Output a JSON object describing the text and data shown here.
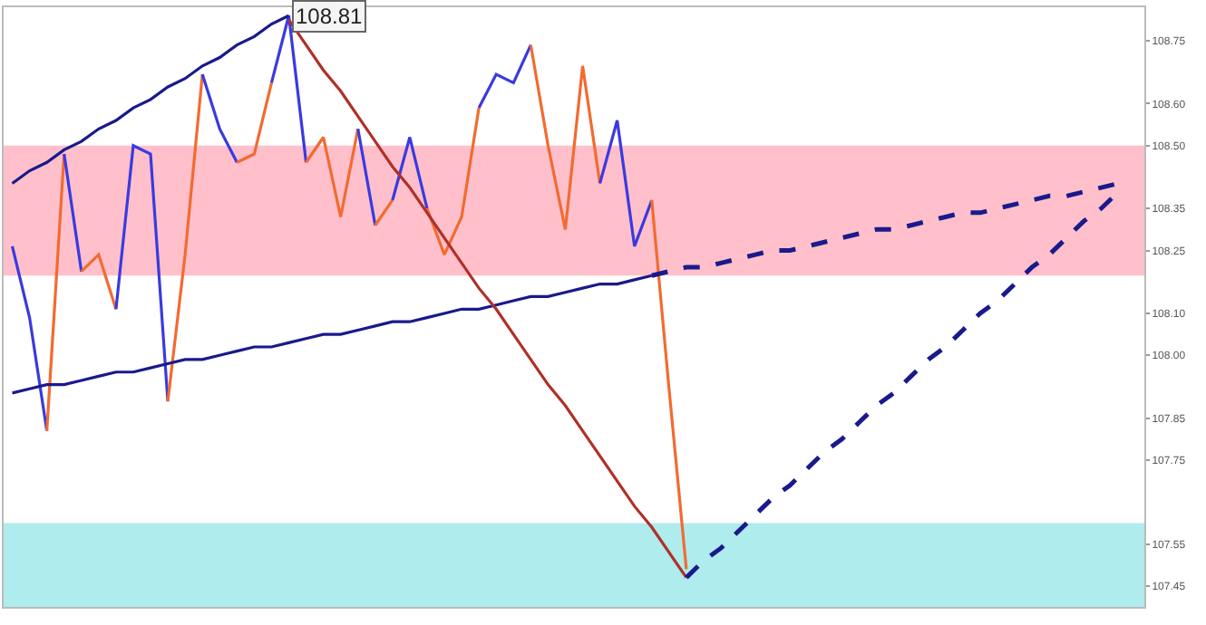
{
  "chart_data": {
    "type": "line",
    "ylim": [
      107.4,
      108.83
    ],
    "tick_labels": "y",
    "categories": [
      null,
      null,
      null,
      null,
      null,
      null,
      null,
      null,
      null,
      null,
      null,
      null,
      null,
      null,
      null,
      null,
      null,
      null,
      null,
      null,
      null,
      null,
      null,
      null,
      null,
      null,
      null,
      null,
      null,
      null,
      null,
      null,
      null,
      null,
      null,
      null,
      null,
      null,
      null,
      null,
      null,
      null,
      null,
      null,
      null,
      null,
      null,
      null,
      null,
      null,
      null,
      null,
      null,
      null,
      null,
      null,
      null,
      null,
      null,
      null,
      null,
      null,
      null,
      null,
      null,
      null
    ],
    "yticks": [
      {
        "value": 107.45,
        "label": "107.45"
      },
      {
        "value": 107.55,
        "label": "107.55"
      },
      {
        "value": 107.75,
        "label": "107.75"
      },
      {
        "value": 107.85,
        "label": "107.85"
      },
      {
        "value": 108.0,
        "label": "108.00"
      },
      {
        "value": 108.1,
        "label": "108.10"
      },
      {
        "value": 108.25,
        "label": "108.25"
      },
      {
        "value": 108.35,
        "label": "108.35"
      },
      {
        "value": 108.5,
        "label": "108.50"
      },
      {
        "value": 108.6,
        "label": "108.60"
      },
      {
        "value": 108.75,
        "label": "108.75"
      }
    ],
    "bands": [
      {
        "axis": "y",
        "from": 108.19,
        "to": 108.5,
        "color": "#ffc0cb"
      },
      {
        "axis": "y",
        "from": 107.4,
        "to": 107.6,
        "color": "#aeeced"
      }
    ],
    "annotations": [
      {
        "text": "108.81",
        "y": 108.81
      }
    ],
    "series": [
      {
        "color": "#3a3adf",
        "values": [
          108.26,
          108.09,
          107.82,
          null,
          null,
          null,
          null,
          null,
          null,
          null,
          null,
          null,
          null,
          null,
          null,
          null,
          null,
          null,
          null,
          null,
          null,
          null,
          null,
          null,
          null,
          null,
          null,
          null,
          null,
          null,
          null,
          null,
          null,
          null,
          null,
          null,
          null,
          null,
          null,
          null,
          null,
          null,
          null,
          null,
          null,
          null,
          null,
          null,
          null,
          null,
          null,
          null,
          null,
          null,
          null,
          null,
          null,
          null,
          null,
          null,
          null,
          null,
          null,
          null,
          null,
          null
        ]
      },
      {
        "color": "#f26b30",
        "values": [
          null,
          null,
          107.82,
          108.48,
          null,
          null,
          null,
          null,
          null,
          null,
          null,
          null,
          null,
          null,
          null,
          null,
          null,
          null,
          null,
          null,
          null,
          null,
          null,
          null,
          null,
          null,
          null,
          null,
          null,
          null,
          null,
          null,
          null,
          null,
          null,
          null,
          null,
          null,
          null,
          null,
          null,
          null,
          null,
          null,
          null,
          null,
          null,
          null,
          null,
          null,
          null,
          null,
          null,
          null,
          null,
          null,
          null,
          null,
          null,
          null,
          null,
          null,
          null,
          null,
          null,
          null
        ]
      },
      {
        "color": "#3a3adf",
        "values": [
          null,
          null,
          null,
          108.48,
          108.2,
          null,
          null,
          null,
          null,
          null,
          null,
          null,
          null,
          null,
          null,
          null,
          null,
          null,
          null,
          null,
          null,
          null,
          null,
          null,
          null,
          null,
          null,
          null,
          null,
          null,
          null,
          null,
          null,
          null,
          null,
          null,
          null,
          null,
          null,
          null,
          null,
          null,
          null,
          null,
          null,
          null,
          null,
          null,
          null,
          null,
          null,
          null,
          null,
          null,
          null,
          null,
          null,
          null,
          null,
          null,
          null,
          null,
          null,
          null,
          null,
          null
        ]
      },
      {
        "color": "#f26b30",
        "values": [
          null,
          null,
          null,
          null,
          108.2,
          108.24,
          108.11,
          null,
          null,
          null,
          null,
          null,
          null,
          null,
          null,
          null,
          null,
          null,
          null,
          null,
          null,
          null,
          null,
          null,
          null,
          null,
          null,
          null,
          null,
          null,
          null,
          null,
          null,
          null,
          null,
          null,
          null,
          null,
          null,
          null,
          null,
          null,
          null,
          null,
          null,
          null,
          null,
          null,
          null,
          null,
          null,
          null,
          null,
          null,
          null,
          null,
          null,
          null,
          null,
          null,
          null,
          null,
          null,
          null,
          null,
          null
        ]
      },
      {
        "color": "#3a3adf",
        "values": [
          null,
          null,
          null,
          null,
          null,
          null,
          108.11,
          108.5,
          108.48,
          107.89,
          null,
          null,
          null,
          null,
          null,
          null,
          null,
          null,
          null,
          null,
          null,
          null,
          null,
          null,
          null,
          null,
          null,
          null,
          null,
          null,
          null,
          null,
          null,
          null,
          null,
          null,
          null,
          null,
          null,
          null,
          null,
          null,
          null,
          null,
          null,
          null,
          null,
          null,
          null,
          null,
          null,
          null,
          null,
          null,
          null,
          null,
          null,
          null,
          null,
          null,
          null,
          null,
          null,
          null,
          null,
          null
        ]
      },
      {
        "color": "#f26b30",
        "values": [
          null,
          null,
          null,
          null,
          null,
          null,
          null,
          null,
          null,
          107.89,
          108.24,
          108.67,
          null,
          null,
          null,
          null,
          null,
          null,
          null,
          null,
          null,
          null,
          null,
          null,
          null,
          null,
          null,
          null,
          null,
          null,
          null,
          null,
          null,
          null,
          null,
          null,
          null,
          null,
          null,
          null,
          null,
          null,
          null,
          null,
          null,
          null,
          null,
          null,
          null,
          null,
          null,
          null,
          null,
          null,
          null,
          null,
          null,
          null,
          null,
          null,
          null,
          null,
          null,
          null,
          null,
          null
        ]
      },
      {
        "color": "#3a3adf",
        "values": [
          null,
          null,
          null,
          null,
          null,
          null,
          null,
          null,
          null,
          null,
          null,
          108.67,
          108.54,
          108.46,
          null,
          null,
          null,
          null,
          null,
          null,
          null,
          null,
          null,
          null,
          null,
          null,
          null,
          null,
          null,
          null,
          null,
          null,
          null,
          null,
          null,
          null,
          null,
          null,
          null,
          null,
          null,
          null,
          null,
          null,
          null,
          null,
          null,
          null,
          null,
          null,
          null,
          null,
          null,
          null,
          null,
          null,
          null,
          null,
          null,
          null,
          null,
          null,
          null,
          null,
          null,
          null
        ]
      },
      {
        "color": "#f26b30",
        "values": [
          null,
          null,
          null,
          null,
          null,
          null,
          null,
          null,
          null,
          null,
          null,
          null,
          null,
          108.46,
          108.48,
          108.65,
          null,
          null,
          null,
          null,
          null,
          null,
          null,
          null,
          null,
          null,
          null,
          null,
          null,
          null,
          null,
          null,
          null,
          null,
          null,
          null,
          null,
          null,
          null,
          null,
          null,
          null,
          null,
          null,
          null,
          null,
          null,
          null,
          null,
          null,
          null,
          null,
          null,
          null,
          null,
          null,
          null,
          null,
          null,
          null,
          null,
          null,
          null,
          null,
          null,
          null
        ]
      },
      {
        "color": "#3a3adf",
        "values": [
          null,
          null,
          null,
          null,
          null,
          null,
          null,
          null,
          null,
          null,
          null,
          null,
          null,
          null,
          null,
          108.65,
          108.81,
          108.46,
          null,
          null,
          null,
          null,
          null,
          null,
          null,
          null,
          null,
          null,
          null,
          null,
          null,
          null,
          null,
          null,
          null,
          null,
          null,
          null,
          null,
          null,
          null,
          null,
          null,
          null,
          null,
          null,
          null,
          null,
          null,
          null,
          null,
          null,
          null,
          null,
          null,
          null,
          null,
          null,
          null,
          null,
          null,
          null,
          null,
          null,
          null,
          null
        ]
      },
      {
        "color": "#f26b30",
        "values": [
          null,
          null,
          null,
          null,
          null,
          null,
          null,
          null,
          null,
          null,
          null,
          null,
          null,
          null,
          null,
          null,
          null,
          108.46,
          108.52,
          108.33,
          108.54,
          null,
          null,
          null,
          null,
          null,
          null,
          null,
          null,
          null,
          null,
          null,
          null,
          null,
          null,
          null,
          null,
          null,
          null,
          null,
          null,
          null,
          null,
          null,
          null,
          null,
          null,
          null,
          null,
          null,
          null,
          null,
          null,
          null,
          null,
          null,
          null,
          null,
          null,
          null,
          null,
          null,
          null,
          null,
          null,
          null
        ]
      },
      {
        "color": "#3a3adf",
        "values": [
          null,
          null,
          null,
          null,
          null,
          null,
          null,
          null,
          null,
          null,
          null,
          null,
          null,
          null,
          null,
          null,
          null,
          null,
          null,
          null,
          108.54,
          108.31,
          null,
          null,
          null,
          null,
          null,
          null,
          null,
          null,
          null,
          null,
          null,
          null,
          null,
          null,
          null,
          null,
          null,
          null,
          null,
          null,
          null,
          null,
          null,
          null,
          null,
          null,
          null,
          null,
          null,
          null,
          null,
          null,
          null,
          null,
          null,
          null,
          null,
          null,
          null,
          null,
          null,
          null,
          null,
          null
        ]
      },
      {
        "color": "#f26b30",
        "values": [
          null,
          null,
          null,
          null,
          null,
          null,
          null,
          null,
          null,
          null,
          null,
          null,
          null,
          null,
          null,
          null,
          null,
          null,
          null,
          null,
          null,
          108.31,
          108.37,
          null,
          null,
          null,
          null,
          null,
          null,
          null,
          null,
          null,
          null,
          null,
          null,
          null,
          null,
          null,
          null,
          null,
          null,
          null,
          null,
          null,
          null,
          null,
          null,
          null,
          null,
          null,
          null,
          null,
          null,
          null,
          null,
          null,
          null,
          null,
          null,
          null,
          null,
          null,
          null,
          null,
          null,
          null
        ]
      },
      {
        "color": "#3a3adf",
        "values": [
          null,
          null,
          null,
          null,
          null,
          null,
          null,
          null,
          null,
          null,
          null,
          null,
          null,
          null,
          null,
          null,
          null,
          null,
          null,
          null,
          null,
          null,
          108.37,
          108.52,
          108.35,
          null,
          null,
          null,
          null,
          null,
          null,
          null,
          null,
          null,
          null,
          null,
          null,
          null,
          null,
          null,
          null,
          null,
          null,
          null,
          null,
          null,
          null,
          null,
          null,
          null,
          null,
          null,
          null,
          null,
          null,
          null,
          null,
          null,
          null,
          null,
          null,
          null,
          null,
          null,
          null,
          null
        ]
      },
      {
        "color": "#f26b30",
        "values": [
          null,
          null,
          null,
          null,
          null,
          null,
          null,
          null,
          null,
          null,
          null,
          null,
          null,
          null,
          null,
          null,
          null,
          null,
          null,
          null,
          null,
          null,
          null,
          null,
          108.35,
          108.24,
          108.33,
          108.59,
          null,
          null,
          null,
          null,
          null,
          null,
          null,
          null,
          null,
          null,
          null,
          null,
          null,
          null,
          null,
          null,
          null,
          null,
          null,
          null,
          null,
          null,
          null,
          null,
          null,
          null,
          null,
          null,
          null,
          null,
          null,
          null,
          null,
          null,
          null,
          null,
          null,
          null
        ]
      },
      {
        "color": "#3a3adf",
        "values": [
          null,
          null,
          null,
          null,
          null,
          null,
          null,
          null,
          null,
          null,
          null,
          null,
          null,
          null,
          null,
          null,
          null,
          null,
          null,
          null,
          null,
          null,
          null,
          null,
          null,
          null,
          null,
          108.59,
          108.67,
          108.65,
          108.74,
          null,
          null,
          null,
          null,
          null,
          null,
          null,
          null,
          null,
          null,
          null,
          null,
          null,
          null,
          null,
          null,
          null,
          null,
          null,
          null,
          null,
          null,
          null,
          null,
          null,
          null,
          null,
          null,
          null,
          null,
          null,
          null,
          null,
          null,
          null
        ]
      },
      {
        "color": "#f26b30",
        "values": [
          null,
          null,
          null,
          null,
          null,
          null,
          null,
          null,
          null,
          null,
          null,
          null,
          null,
          null,
          null,
          null,
          null,
          null,
          null,
          null,
          null,
          null,
          null,
          null,
          null,
          null,
          null,
          null,
          null,
          null,
          108.74,
          108.5,
          108.3,
          108.69,
          108.41,
          null,
          null,
          null,
          null,
          null,
          null,
          null,
          null,
          null,
          null,
          null,
          null,
          null,
          null,
          null,
          null,
          null,
          null,
          null,
          null,
          null,
          null,
          null,
          null,
          null,
          null,
          null,
          null,
          null,
          null,
          null
        ]
      },
      {
        "color": "#3a3adf",
        "values": [
          null,
          null,
          null,
          null,
          null,
          null,
          null,
          null,
          null,
          null,
          null,
          null,
          null,
          null,
          null,
          null,
          null,
          null,
          null,
          null,
          null,
          null,
          null,
          null,
          null,
          null,
          null,
          null,
          null,
          null,
          null,
          null,
          null,
          null,
          108.41,
          108.56,
          108.26,
          108.37,
          null,
          null,
          null,
          null,
          null,
          null,
          null,
          null,
          null,
          null,
          null,
          null,
          null,
          null,
          null,
          null,
          null,
          null,
          null,
          null,
          null,
          null,
          null,
          null,
          null,
          null,
          null,
          null
        ]
      },
      {
        "color": "#f26b30",
        "values": [
          null,
          null,
          null,
          null,
          null,
          null,
          null,
          null,
          null,
          null,
          null,
          null,
          null,
          null,
          null,
          null,
          null,
          null,
          null,
          null,
          null,
          null,
          null,
          null,
          null,
          null,
          null,
          null,
          null,
          null,
          null,
          null,
          null,
          null,
          null,
          null,
          null,
          108.37,
          107.92,
          107.49,
          null,
          null,
          null,
          null,
          null,
          null,
          null,
          null,
          null,
          null,
          null,
          null,
          null,
          null,
          null,
          null,
          null,
          null,
          null,
          null,
          null,
          null,
          null,
          null,
          null,
          null
        ]
      },
      {
        "color": "#1a1a8c",
        "values": [
          108.41,
          108.44,
          108.46,
          108.49,
          108.51,
          108.54,
          108.56,
          108.59,
          108.61,
          108.64,
          108.66,
          108.69,
          108.71,
          108.74,
          108.76,
          108.79,
          108.81,
          null,
          null,
          null,
          null,
          null,
          null,
          null,
          null,
          null,
          null,
          null,
          null,
          null,
          null,
          null,
          null,
          null,
          null,
          null,
          null,
          null,
          null,
          null,
          null,
          null,
          null,
          null,
          null,
          null,
          null,
          null,
          null,
          null,
          null,
          null,
          null,
          null,
          null,
          null,
          null,
          null,
          null,
          null,
          null,
          null,
          null,
          null,
          null,
          null
        ]
      },
      {
        "color": "#1a1a8c",
        "values": [
          107.91,
          107.92,
          107.93,
          107.93,
          107.94,
          107.95,
          107.96,
          107.96,
          107.97,
          107.98,
          107.99,
          107.99,
          108.0,
          108.01,
          108.02,
          108.02,
          108.03,
          108.04,
          108.05,
          108.05,
          108.06,
          108.07,
          108.08,
          108.08,
          108.09,
          108.1,
          108.11,
          108.11,
          108.12,
          108.13,
          108.14,
          108.14,
          108.15,
          108.16,
          108.17,
          108.17,
          108.18,
          108.19,
          null,
          null,
          null,
          null,
          null,
          null,
          null,
          null,
          null,
          null,
          null,
          null,
          null,
          null,
          null,
          null,
          null,
          null,
          null,
          null,
          null,
          null,
          null,
          null,
          null,
          null,
          null,
          null
        ]
      },
      {
        "color": "#1a1a8c",
        "line_style": "dashed",
        "values": [
          null,
          null,
          null,
          null,
          null,
          null,
          null,
          null,
          null,
          null,
          null,
          null,
          null,
          null,
          null,
          null,
          null,
          null,
          null,
          null,
          null,
          null,
          null,
          null,
          null,
          null,
          null,
          null,
          null,
          null,
          null,
          null,
          null,
          null,
          null,
          null,
          null,
          108.19,
          108.2,
          108.21,
          108.21,
          108.22,
          108.23,
          108.24,
          108.25,
          108.25,
          108.26,
          108.27,
          108.28,
          108.29,
          108.3,
          108.3,
          108.31,
          108.32,
          108.33,
          108.34,
          108.34,
          108.35,
          108.36,
          108.37,
          108.38,
          108.38,
          108.39,
          108.4,
          108.41,
          null
        ]
      },
      {
        "color": "#b0302a",
        "values": [
          null,
          null,
          null,
          null,
          null,
          null,
          null,
          null,
          null,
          null,
          null,
          null,
          null,
          null,
          null,
          null,
          108.8,
          108.74,
          108.68,
          108.63,
          108.57,
          108.51,
          108.45,
          108.4,
          108.34,
          108.28,
          108.22,
          108.16,
          108.11,
          108.05,
          107.99,
          107.93,
          107.88,
          107.82,
          107.76,
          107.7,
          107.64,
          107.59,
          107.53,
          107.47,
          null,
          null,
          null,
          null,
          null,
          null,
          null,
          null,
          null,
          null,
          null,
          null,
          null,
          null,
          null,
          null,
          null,
          null,
          null,
          null,
          null,
          null,
          null,
          null,
          null,
          null
        ]
      },
      {
        "color": "#1a1a8c",
        "line_style": "dashed",
        "values": [
          null,
          null,
          null,
          null,
          null,
          null,
          null,
          null,
          null,
          null,
          null,
          null,
          null,
          null,
          null,
          null,
          null,
          null,
          null,
          null,
          null,
          null,
          null,
          null,
          null,
          null,
          null,
          null,
          null,
          null,
          null,
          null,
          null,
          null,
          null,
          null,
          null,
          null,
          null,
          107.47,
          107.51,
          107.54,
          107.58,
          107.62,
          107.66,
          107.69,
          107.73,
          107.77,
          107.8,
          107.84,
          107.88,
          107.91,
          107.95,
          107.99,
          108.02,
          108.06,
          108.1,
          108.13,
          108.17,
          108.21,
          108.24,
          108.28,
          108.32,
          108.35,
          108.39,
          null
        ]
      }
    ]
  }
}
